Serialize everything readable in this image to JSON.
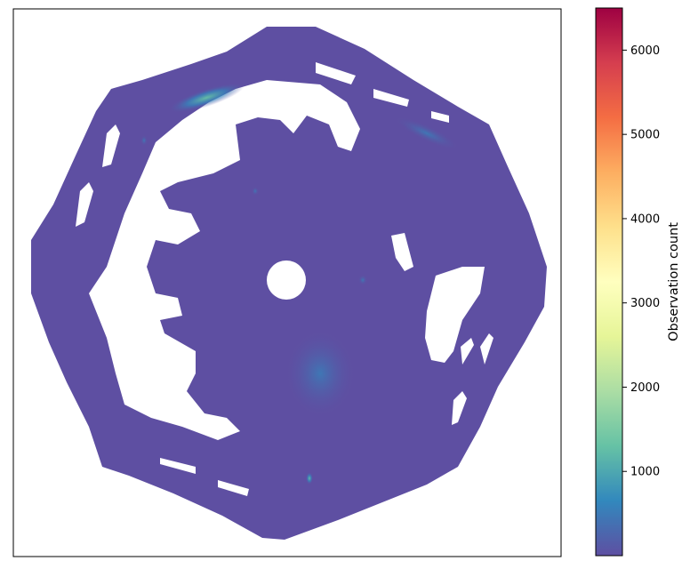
{
  "chart_data": {
    "type": "heatmap",
    "title": "",
    "xlabel": "",
    "ylabel": "",
    "x_ticks_visible": false,
    "y_ticks_visible": false,
    "colormap": "Spectral_r",
    "colormap_stops": [
      "#5e4fa2",
      "#3288bd",
      "#66c2a5",
      "#abdda4",
      "#e6f598",
      "#ffffbf",
      "#fee08b",
      "#fdae61",
      "#f46d43",
      "#d53e4f",
      "#9e0142"
    ],
    "colorbar": {
      "label": "Observation count",
      "vmin": 0,
      "vmax": 6500,
      "ticks": [
        1000,
        2000,
        3000,
        4000,
        5000,
        6000
      ],
      "tick_labels": [
        "1000",
        "2000",
        "3000",
        "4000",
        "5000",
        "6000"
      ]
    },
    "grid": false,
    "background_value": 50,
    "hotspots": [
      {
        "region": "upper-left arc",
        "approx_value": 1300
      },
      {
        "region": "lower center spot",
        "approx_value": 1100
      },
      {
        "region": "upper-right arc",
        "approx_value": 700
      },
      {
        "region": "central lower area",
        "approx_value": 600
      }
    ]
  }
}
